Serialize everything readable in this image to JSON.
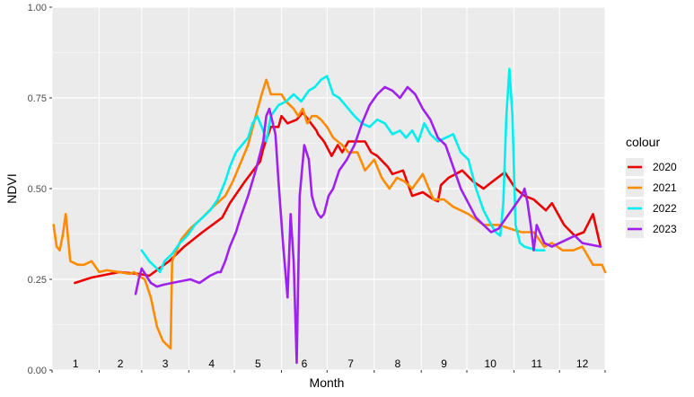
{
  "chart_data": {
    "type": "line",
    "xlabel": "Month",
    "ylabel": "NDVI",
    "xlim": [
      1,
      365
    ],
    "ylim": [
      0,
      1
    ],
    "y_ticks": [
      0.0,
      0.25,
      0.5,
      0.75,
      1.0
    ],
    "y_tick_labels": [
      "0.00",
      "0.25",
      "0.50",
      "0.75",
      "1.00"
    ],
    "month_labels": [
      "1",
      "2",
      "3",
      "4",
      "5",
      "6",
      "7",
      "8",
      "9",
      "10",
      "11",
      "12"
    ],
    "grid": true,
    "legend": {
      "title": "colour",
      "placement": "right"
    },
    "series": [
      {
        "name": "2020",
        "color": "#ee0000",
        "x": [
          16,
          27,
          45,
          58,
          65,
          78,
          88,
          100,
          113,
          118,
          128,
          138,
          140,
          145,
          150,
          152,
          156,
          162,
          166,
          175,
          176,
          180,
          185,
          189,
          192,
          196,
          202,
          207,
          211,
          215,
          222,
          225,
          232,
          238,
          245,
          252,
          255,
          257,
          262,
          271,
          278,
          285,
          291,
          299,
          306,
          312,
          318,
          326,
          330,
          338,
          345,
          351,
          357,
          362
        ],
        "y": [
          0.24,
          0.255,
          0.27,
          0.265,
          0.26,
          0.3,
          0.34,
          0.38,
          0.42,
          0.46,
          0.52,
          0.575,
          0.61,
          0.67,
          0.67,
          0.7,
          0.68,
          0.69,
          0.71,
          0.66,
          0.65,
          0.63,
          0.59,
          0.62,
          0.6,
          0.63,
          0.63,
          0.63,
          0.6,
          0.59,
          0.56,
          0.54,
          0.55,
          0.48,
          0.49,
          0.47,
          0.465,
          0.51,
          0.53,
          0.55,
          0.52,
          0.5,
          0.52,
          0.545,
          0.5,
          0.48,
          0.47,
          0.44,
          0.46,
          0.4,
          0.37,
          0.38,
          0.43,
          0.34
        ]
      },
      {
        "name": "2021",
        "color": "#ff8c00",
        "x": [
          2,
          4,
          6,
          8,
          10,
          13,
          18,
          22,
          27,
          32,
          37,
          45,
          52,
          55,
          58,
          62,
          66,
          70,
          74,
          79,
          80,
          86,
          92,
          100,
          107,
          115,
          120,
          130,
          135,
          139,
          142,
          145,
          152,
          155,
          160,
          163,
          166,
          169,
          172,
          175,
          178,
          182,
          186,
          192,
          196,
          202,
          207,
          213,
          218,
          223,
          228,
          233,
          238,
          245,
          252,
          259,
          265,
          275,
          285,
          295,
          302,
          310,
          318,
          325,
          330,
          337,
          344,
          350,
          357,
          363,
          365
        ],
        "y": [
          0.4,
          0.34,
          0.33,
          0.37,
          0.43,
          0.3,
          0.29,
          0.29,
          0.3,
          0.27,
          0.275,
          0.27,
          0.265,
          0.27,
          0.26,
          0.25,
          0.2,
          0.12,
          0.08,
          0.06,
          0.3,
          0.36,
          0.39,
          0.42,
          0.45,
          0.48,
          0.52,
          0.62,
          0.7,
          0.76,
          0.8,
          0.76,
          0.76,
          0.74,
          0.72,
          0.7,
          0.72,
          0.68,
          0.7,
          0.7,
          0.69,
          0.67,
          0.64,
          0.62,
          0.6,
          0.6,
          0.55,
          0.58,
          0.53,
          0.5,
          0.53,
          0.52,
          0.5,
          0.54,
          0.47,
          0.47,
          0.45,
          0.43,
          0.4,
          0.4,
          0.39,
          0.38,
          0.38,
          0.34,
          0.35,
          0.33,
          0.33,
          0.34,
          0.29,
          0.29,
          0.27
        ]
      },
      {
        "name": "2022",
        "color": "#00eeee",
        "x": [
          60,
          65,
          70,
          72,
          75,
          80,
          85,
          90,
          95,
          100,
          105,
          110,
          115,
          118,
          122,
          126,
          130,
          133,
          136,
          140,
          142,
          145,
          150,
          155,
          160,
          165,
          170,
          174,
          178,
          182,
          186,
          190,
          192,
          196,
          200,
          205,
          210,
          215,
          220,
          225,
          230,
          234,
          238,
          242,
          246,
          250,
          255,
          260,
          265,
          270,
          275,
          280,
          285,
          290,
          293,
          296,
          298,
          300,
          302,
          304,
          306,
          309,
          312,
          320,
          325
        ],
        "y": [
          0.33,
          0.3,
          0.28,
          0.27,
          0.3,
          0.32,
          0.35,
          0.37,
          0.4,
          0.42,
          0.44,
          0.47,
          0.52,
          0.56,
          0.6,
          0.62,
          0.64,
          0.68,
          0.7,
          0.66,
          0.63,
          0.7,
          0.73,
          0.74,
          0.76,
          0.74,
          0.77,
          0.78,
          0.8,
          0.81,
          0.76,
          0.75,
          0.74,
          0.72,
          0.7,
          0.68,
          0.67,
          0.69,
          0.68,
          0.65,
          0.66,
          0.64,
          0.66,
          0.63,
          0.68,
          0.65,
          0.63,
          0.64,
          0.65,
          0.6,
          0.58,
          0.5,
          0.44,
          0.4,
          0.38,
          0.37,
          0.46,
          0.7,
          0.83,
          0.7,
          0.4,
          0.35,
          0.34,
          0.33,
          0.33
        ]
      },
      {
        "name": "2023",
        "color": "#a020f0",
        "x": [
          56,
          58,
          60,
          63,
          66,
          70,
          74,
          80,
          86,
          92,
          98,
          105,
          110,
          112,
          115,
          118,
          122,
          125,
          130,
          135,
          140,
          142,
          144,
          148,
          150,
          153,
          156,
          158,
          160,
          162,
          164,
          167,
          170,
          172,
          174,
          176,
          178,
          180,
          183,
          186,
          190,
          195,
          200,
          205,
          210,
          215,
          220,
          225,
          230,
          235,
          240,
          245,
          250,
          255,
          260,
          265,
          270,
          275,
          280,
          285,
          290,
          295,
          300,
          305,
          310,
          312,
          314,
          316,
          318,
          320,
          322,
          325,
          330,
          335,
          340,
          345,
          350,
          362
        ],
        "y": [
          0.21,
          0.25,
          0.28,
          0.26,
          0.24,
          0.23,
          0.235,
          0.24,
          0.245,
          0.25,
          0.24,
          0.26,
          0.27,
          0.27,
          0.3,
          0.34,
          0.38,
          0.42,
          0.48,
          0.55,
          0.63,
          0.7,
          0.72,
          0.65,
          0.52,
          0.35,
          0.2,
          0.43,
          0.3,
          0.02,
          0.48,
          0.62,
          0.58,
          0.48,
          0.45,
          0.43,
          0.42,
          0.43,
          0.48,
          0.5,
          0.55,
          0.58,
          0.62,
          0.68,
          0.73,
          0.76,
          0.78,
          0.77,
          0.75,
          0.78,
          0.76,
          0.72,
          0.69,
          0.64,
          0.62,
          0.56,
          0.5,
          0.46,
          0.42,
          0.4,
          0.38,
          0.39,
          0.42,
          0.45,
          0.48,
          0.5,
          0.46,
          0.4,
          0.33,
          0.4,
          0.38,
          0.35,
          0.34,
          0.35,
          0.36,
          0.37,
          0.35,
          0.34
        ]
      }
    ]
  }
}
